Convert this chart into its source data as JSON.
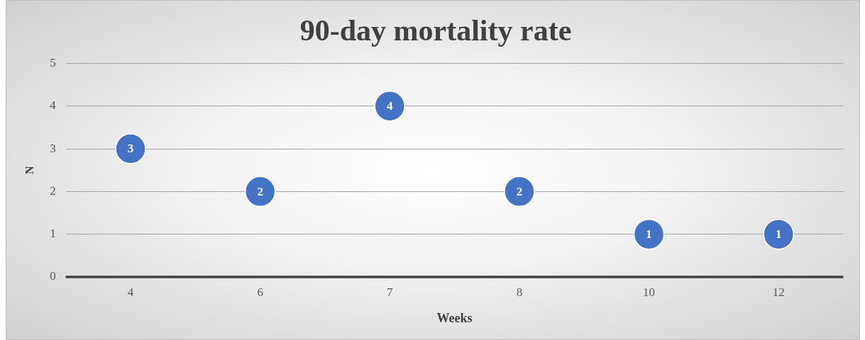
{
  "chart_data": {
    "type": "scatter",
    "title": "90-day mortality rate",
    "xlabel": "Weeks",
    "ylabel": "N",
    "categories": [
      "4",
      "6",
      "7",
      "8",
      "10",
      "12"
    ],
    "values": [
      3,
      2,
      4,
      2,
      1,
      1
    ],
    "color": "#4472c4",
    "ylim": [
      0,
      5
    ],
    "yticks": [
      0,
      1,
      2,
      3,
      4,
      5
    ],
    "grid": "y",
    "legend": false,
    "marker": "circle",
    "data_labels": true
  }
}
